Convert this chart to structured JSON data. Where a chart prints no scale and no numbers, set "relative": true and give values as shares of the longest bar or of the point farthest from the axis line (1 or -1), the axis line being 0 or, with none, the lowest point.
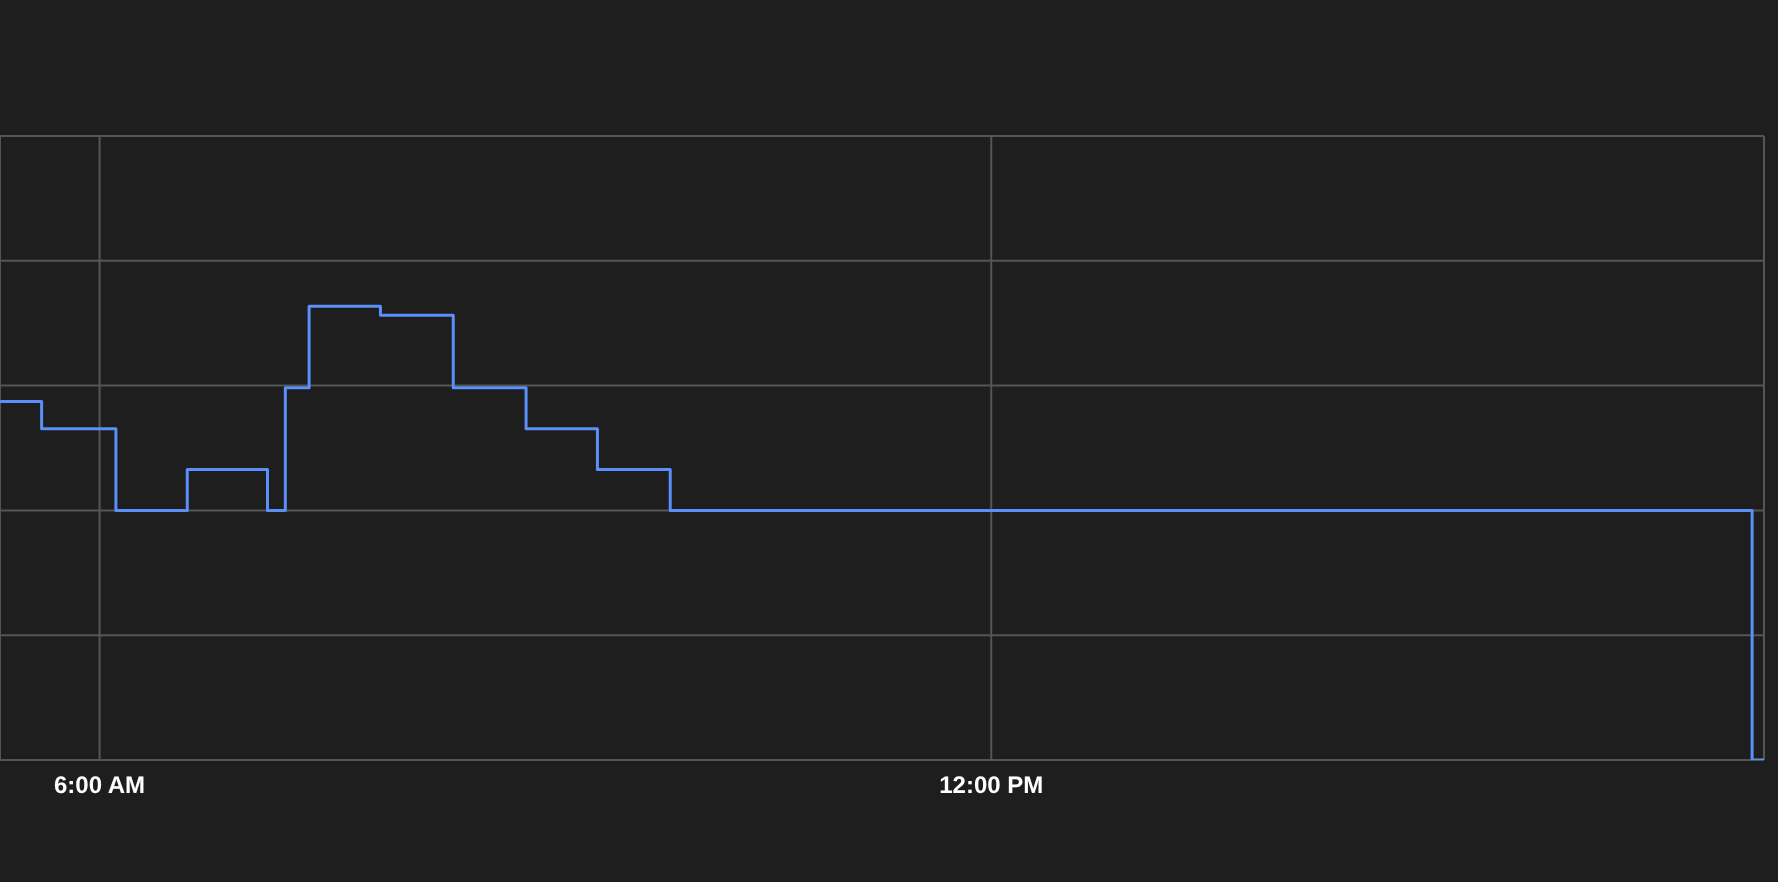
{
  "chart_data": {
    "type": "step",
    "relative": true,
    "x": [
      5.33,
      5.61,
      6.11,
      6.59,
      7.13,
      7.25,
      7.41,
      7.89,
      8.38,
      8.87,
      9.35,
      9.84,
      17.12,
      17.2
    ],
    "series": [
      {
        "color": "#5b8ff9",
        "values": [
          0.79,
          0.73,
          0.55,
          0.64,
          0.55,
          0.82,
          1,
          0.98,
          0.82,
          0.73,
          0.64,
          0.55,
          0,
          0
        ]
      }
    ],
    "xlim": [
      5.33,
      17.2
    ],
    "xticks": [
      {
        "value": 6,
        "label": "6:00 AM"
      },
      {
        "value": 12,
        "label": "12:00 PM"
      }
    ],
    "grid": true,
    "marker": "none",
    "line_style": "solid"
  }
}
